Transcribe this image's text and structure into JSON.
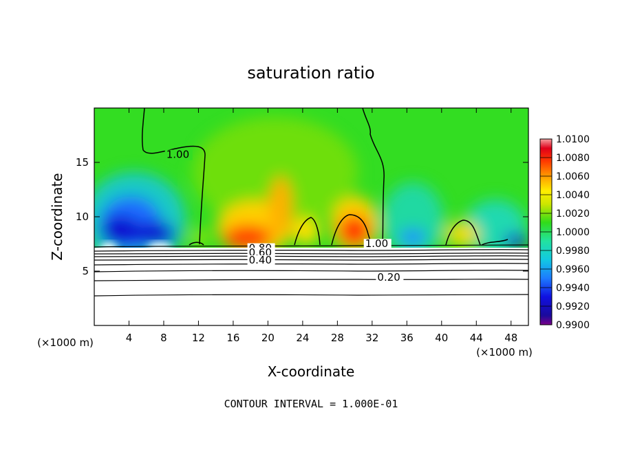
{
  "chart_data": {
    "type": "contour",
    "title": "saturation ratio",
    "xlabel": "X-coordinate",
    "ylabel": "Z-coordinate",
    "x_units": "(×1000 m)",
    "footer": "CONTOUR INTERVAL = 1.000E-01",
    "xlim": [
      0,
      50
    ],
    "ylim": [
      0,
      20
    ],
    "x_ticks": [
      4,
      8,
      12,
      16,
      20,
      24,
      28,
      32,
      36,
      40,
      44,
      48
    ],
    "y_ticks": [
      5,
      10,
      15
    ],
    "colorbar": {
      "min": 0.99,
      "max": 1.01,
      "tick_labels": [
        "1.0100",
        "1.0080",
        "1.0060",
        "1.0040",
        "1.0020",
        "1.0000",
        "0.9980",
        "0.9960",
        "0.9940",
        "0.9920",
        "0.9900"
      ]
    },
    "contour_labels": [
      {
        "text": "1.00",
        "x": 8.3,
        "z": 15.4
      },
      {
        "text": "1.00",
        "x": 31.2,
        "z": 7.2
      },
      {
        "text": "0.80",
        "x": 17.8,
        "z": 6.8
      },
      {
        "text": "0.60",
        "x": 17.8,
        "z": 6.4
      },
      {
        "text": "0.40",
        "x": 17.8,
        "z": 5.7
      },
      {
        "text": "0.20",
        "x": 32.6,
        "z": 4.1
      }
    ]
  }
}
